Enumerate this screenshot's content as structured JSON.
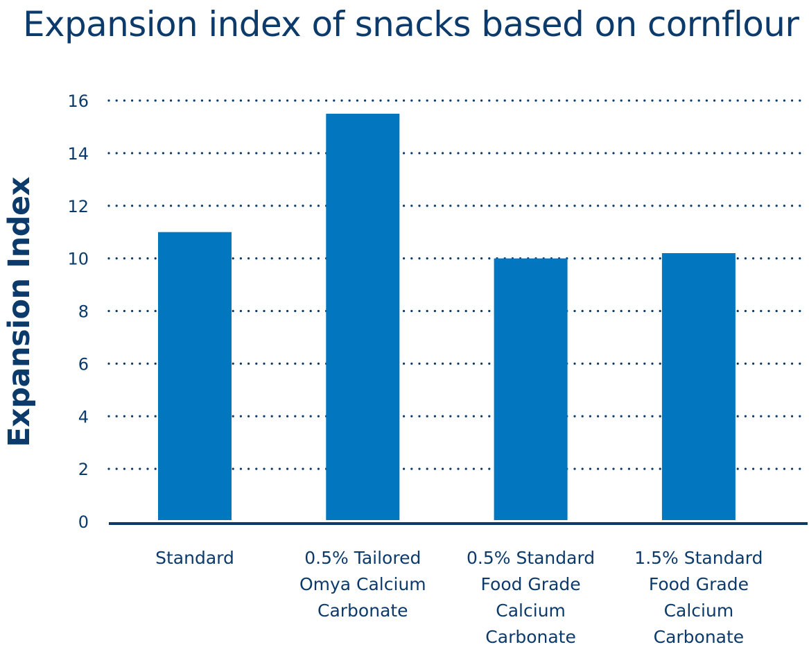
{
  "colors": {
    "text": "#0b3a6b",
    "bar": "#0277c0",
    "axis": "#0b3a6b",
    "grid": "#0b3a6b"
  },
  "chart_data": {
    "type": "bar",
    "title": "Expansion index of snacks based on cornflour",
    "xlabel": "",
    "ylabel": "Expansion Index",
    "ylim": [
      0,
      16
    ],
    "yticks": [
      0,
      2,
      4,
      6,
      8,
      10,
      12,
      14,
      16
    ],
    "grid": true,
    "grid_style": "dotted",
    "legend": "none",
    "categories": [
      "Standard",
      "0.5% Tailored Omya Calcium Carbonate",
      "0.5% Standard Food Grade Calcium Carbonate",
      "1.5% Standard Food Grade Calcium Carbonate"
    ],
    "category_label_lines": [
      [
        "Standard"
      ],
      [
        "0.5% Tailored",
        "Omya Calcium",
        "Carbonate"
      ],
      [
        "0.5% Standard",
        "Food Grade",
        "Calcium",
        "Carbonate"
      ],
      [
        "1.5% Standard",
        "Food Grade",
        "Calcium",
        "Carbonate"
      ]
    ],
    "series": [
      {
        "values": [
          11.0,
          15.5,
          10.0,
          10.2
        ]
      }
    ]
  }
}
